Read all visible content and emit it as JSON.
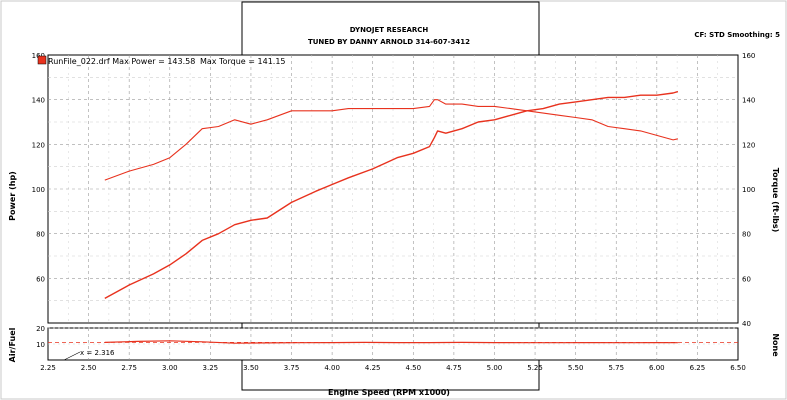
{
  "header": {
    "line1": "DYNOJET RESEARCH",
    "line2": "TUNED BY DANNY ARNOLD 314-607-3412",
    "settings": "CF: STD  Smoothing: 5"
  },
  "legend": {
    "run_label": "RunFile_022.drf Max Power = 143.58",
    "torque_label": "Max Torque = 141.15"
  },
  "cursor_readout": "x = 2.316",
  "colors": {
    "curve": "#e8321e",
    "grid": "#9a9a9a",
    "frame": "#000000"
  },
  "chart_data": {
    "type": "line",
    "xlabel": "Engine Speed (RPM x1000)",
    "x_ticks": [
      "2.25",
      "2.50",
      "2.75",
      "3.00",
      "3.25",
      "3.50",
      "3.75",
      "4.00",
      "4.25",
      "4.50",
      "4.75",
      "5.00",
      "5.25",
      "5.50",
      "5.75",
      "6.00",
      "6.25",
      "6.50"
    ],
    "xlim": [
      2.25,
      6.5
    ],
    "main_plot": {
      "ylabel_left": "Power (hp)",
      "ylabel_right": "Torque (ft-lbs)",
      "ylim": [
        40,
        160
      ],
      "y_ticks_left": [
        "160",
        "140",
        "120",
        "100",
        "80",
        "60"
      ],
      "y_ticks_right": [
        "160",
        "140",
        "120",
        "100",
        "80",
        "60",
        "40"
      ],
      "series": [
        {
          "name": "Max Power = 143.58",
          "x": [
            2.6,
            2.75,
            2.9,
            3.0,
            3.1,
            3.2,
            3.3,
            3.4,
            3.5,
            3.6,
            3.75,
            3.9,
            4.0,
            4.1,
            4.25,
            4.4,
            4.5,
            4.6,
            4.63,
            4.65,
            4.7,
            4.8,
            4.9,
            5.0,
            5.1,
            5.2,
            5.3,
            5.4,
            5.5,
            5.6,
            5.7,
            5.8,
            5.9,
            6.0,
            6.1,
            6.13
          ],
          "y": [
            51,
            57,
            62,
            66,
            71,
            77,
            80,
            84,
            86,
            87,
            94,
            99,
            102,
            105,
            109,
            114,
            116,
            119,
            123,
            126,
            125,
            127,
            130,
            131,
            133,
            135,
            136,
            138,
            139,
            140,
            141,
            141,
            142,
            142,
            143,
            143.6
          ]
        },
        {
          "name": "Max Torque = 141.15",
          "x": [
            2.6,
            2.75,
            2.9,
            3.0,
            3.1,
            3.2,
            3.3,
            3.4,
            3.5,
            3.6,
            3.75,
            3.9,
            4.0,
            4.1,
            4.25,
            4.4,
            4.5,
            4.6,
            4.63,
            4.65,
            4.7,
            4.8,
            4.9,
            5.0,
            5.1,
            5.2,
            5.3,
            5.4,
            5.5,
            5.6,
            5.7,
            5.8,
            5.9,
            6.0,
            6.1,
            6.13
          ],
          "y": [
            104,
            108,
            111,
            114,
            120,
            127,
            128,
            131,
            129,
            131,
            135,
            135,
            135,
            136,
            136,
            136,
            136,
            137,
            140,
            140,
            138,
            138,
            137,
            137,
            136,
            135,
            134,
            133,
            132,
            131,
            128,
            127,
            126,
            124,
            122,
            122.5
          ]
        }
      ]
    },
    "sub_plot": {
      "ylabel_left": "Air/Fuel",
      "ylabel_right": "None",
      "ylim": [
        0,
        20
      ],
      "y_ticks": [
        "20",
        "10"
      ],
      "reference_line": 11,
      "series": [
        {
          "name": "Air/Fuel",
          "x": [
            2.6,
            2.8,
            3.0,
            3.2,
            3.4,
            3.6,
            3.8,
            4.0,
            4.2,
            4.4,
            4.6,
            4.8,
            5.0,
            5.2,
            5.4,
            5.6,
            5.8,
            6.0,
            6.13
          ],
          "y": [
            11.0,
            11.6,
            12.0,
            11.4,
            10.5,
            10.7,
            10.8,
            10.9,
            11.0,
            10.9,
            10.9,
            11.0,
            10.9,
            10.8,
            10.8,
            10.9,
            10.8,
            10.9,
            10.8
          ]
        }
      ]
    }
  }
}
